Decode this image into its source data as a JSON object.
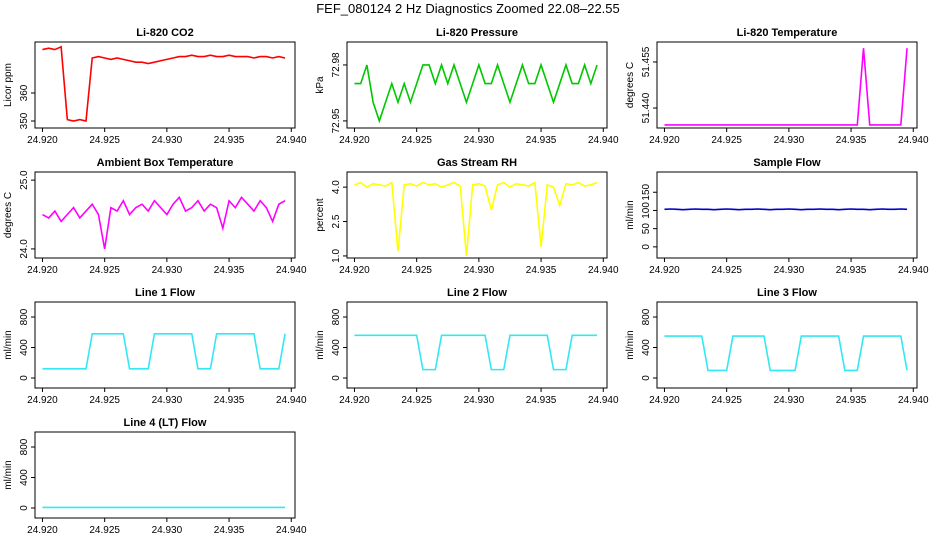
{
  "title": "FEF_080124  2 Hz Diagnostics Zoomed 22.08–22.55",
  "chart_data": [
    {
      "type": "line",
      "title": "Li-820 CO2",
      "y_label": "Licor ppm",
      "x": [
        24.92,
        24.9205,
        24.921,
        24.9215,
        24.922,
        24.9225,
        24.923,
        24.9235,
        24.924,
        24.9245,
        24.925,
        24.9255,
        24.926,
        24.9265,
        24.927,
        24.9275,
        24.928,
        24.9285,
        24.929,
        24.9295,
        24.93,
        24.9305,
        24.931,
        24.9315,
        24.932,
        24.9325,
        24.933,
        24.9335,
        24.934,
        24.9345,
        24.935,
        24.9355,
        24.936,
        24.9365,
        24.937,
        24.9375,
        24.938,
        24.9385,
        24.939,
        24.9395
      ],
      "values": [
        375.5,
        376,
        375.5,
        376.5,
        350.5,
        350,
        350.5,
        350,
        372.5,
        373,
        372.5,
        372,
        372.5,
        372,
        371.5,
        371,
        371,
        370.5,
        371,
        371.5,
        372,
        372.5,
        373,
        373,
        373.5,
        373,
        373,
        373.5,
        373,
        373,
        373.5,
        373,
        373,
        373,
        372.5,
        373,
        373,
        372.5,
        373,
        372.5
      ],
      "color": "#ff0000",
      "xlim": [
        24.9194,
        24.9403
      ],
      "ylim": [
        347.5,
        378.2
      ],
      "xticks": [
        {
          "value": 24.92,
          "label": "24.920"
        },
        {
          "value": 24.925,
          "label": "24.925"
        },
        {
          "value": 24.93,
          "label": "24.930"
        },
        {
          "value": 24.935,
          "label": "24.935"
        },
        {
          "value": 24.94,
          "label": "24.940"
        }
      ],
      "yticks": [
        350,
        360
      ]
    },
    {
      "type": "line",
      "title": "Li-820 Pressure",
      "y_label": "kPa",
      "x": [
        24.92,
        24.9205,
        24.921,
        24.9215,
        24.922,
        24.9225,
        24.923,
        24.9235,
        24.924,
        24.9245,
        24.925,
        24.9255,
        24.926,
        24.9265,
        24.927,
        24.9275,
        24.928,
        24.9285,
        24.929,
        24.9295,
        24.93,
        24.9305,
        24.931,
        24.9315,
        24.932,
        24.9325,
        24.933,
        24.9335,
        24.934,
        24.9345,
        24.935,
        24.9355,
        24.936,
        24.9365,
        24.937,
        24.9375,
        24.938,
        24.9385,
        24.939,
        24.9395
      ],
      "values": [
        72.97,
        72.97,
        72.98,
        72.96,
        72.95,
        72.96,
        72.97,
        72.96,
        72.97,
        72.96,
        72.97,
        72.98,
        72.98,
        72.97,
        72.98,
        72.97,
        72.98,
        72.97,
        72.96,
        72.97,
        72.98,
        72.97,
        72.97,
        72.98,
        72.97,
        72.96,
        72.97,
        72.98,
        72.97,
        72.97,
        72.98,
        72.97,
        72.96,
        72.97,
        72.98,
        72.97,
        72.97,
        72.98,
        72.97,
        72.98
      ],
      "color": "#00c800",
      "xlim": [
        24.9194,
        24.9403
      ],
      "ylim": [
        72.9462,
        72.9923
      ],
      "xticks": [
        {
          "value": 24.92,
          "label": "24.920"
        },
        {
          "value": 24.925,
          "label": "24.925"
        },
        {
          "value": 24.93,
          "label": "24.930"
        },
        {
          "value": 24.935,
          "label": "24.935"
        },
        {
          "value": 24.94,
          "label": "24.940"
        }
      ],
      "yticks": [
        72.95,
        72.98
      ]
    },
    {
      "type": "line",
      "title": "Li-820 Temperature",
      "y_label": "degrees C",
      "x": [
        24.92,
        24.9205,
        24.921,
        24.9215,
        24.922,
        24.9225,
        24.923,
        24.9235,
        24.924,
        24.9245,
        24.925,
        24.9255,
        24.926,
        24.9265,
        24.927,
        24.9275,
        24.928,
        24.9285,
        24.929,
        24.9295,
        24.93,
        24.9305,
        24.931,
        24.9315,
        24.932,
        24.9325,
        24.933,
        24.9335,
        24.934,
        24.9345,
        24.935,
        24.9355,
        24.936,
        24.9365,
        24.937,
        24.9375,
        24.938,
        24.9385,
        24.939,
        24.9395
      ],
      "values": [
        51.4345,
        51.4345,
        51.4345,
        51.4345,
        51.4345,
        51.4345,
        51.4345,
        51.4345,
        51.4345,
        51.4345,
        51.4345,
        51.4345,
        51.4345,
        51.4345,
        51.4345,
        51.4345,
        51.4345,
        51.4345,
        51.4345,
        51.4345,
        51.4345,
        51.4345,
        51.4345,
        51.4345,
        51.4345,
        51.4345,
        51.4345,
        51.4345,
        51.4345,
        51.4345,
        51.4345,
        51.4345,
        51.4595,
        51.4345,
        51.4345,
        51.4345,
        51.4345,
        51.4345,
        51.4345,
        51.4595
      ],
      "color": "#ff00ff",
      "xlim": [
        24.9194,
        24.9403
      ],
      "ylim": [
        51.4335,
        51.4615
      ],
      "xticks": [
        {
          "value": 24.92,
          "label": "24.920"
        },
        {
          "value": 24.925,
          "label": "24.925"
        },
        {
          "value": 24.93,
          "label": "24.930"
        },
        {
          "value": 24.935,
          "label": "24.935"
        },
        {
          "value": 24.94,
          "label": "24.940"
        }
      ],
      "yticks": [
        {
          "value": 51.44,
          "label": "51.440"
        },
        {
          "value": 51.455,
          "label": "51.455"
        }
      ]
    },
    {
      "type": "line",
      "title": "Ambient Box Temperature",
      "y_label": "degrees C",
      "x": [
        24.92,
        24.9205,
        24.921,
        24.9215,
        24.922,
        24.9225,
        24.923,
        24.9235,
        24.924,
        24.9245,
        24.925,
        24.9255,
        24.926,
        24.9265,
        24.927,
        24.9275,
        24.928,
        24.9285,
        24.929,
        24.9295,
        24.93,
        24.9305,
        24.931,
        24.9315,
        24.932,
        24.9325,
        24.933,
        24.9335,
        24.934,
        24.9345,
        24.935,
        24.9355,
        24.936,
        24.9365,
        24.937,
        24.9375,
        24.938,
        24.9385,
        24.939,
        24.9395
      ],
      "values": [
        24.5,
        24.45,
        24.55,
        24.4,
        24.5,
        24.6,
        24.45,
        24.55,
        24.65,
        24.5,
        24.0,
        24.6,
        24.55,
        24.7,
        24.5,
        24.6,
        24.65,
        24.55,
        24.7,
        24.6,
        24.5,
        24.65,
        24.75,
        24.55,
        24.6,
        24.7,
        24.55,
        24.65,
        24.6,
        24.3,
        24.7,
        24.6,
        24.75,
        24.65,
        24.55,
        24.7,
        24.6,
        24.4,
        24.65,
        24.7
      ],
      "color": "#ff00ff",
      "xlim": [
        24.9194,
        24.9403
      ],
      "ylim": [
        23.868,
        25.118
      ],
      "xticks": [
        {
          "value": 24.92,
          "label": "24.920"
        },
        {
          "value": 24.925,
          "label": "24.925"
        },
        {
          "value": 24.93,
          "label": "24.930"
        },
        {
          "value": 24.935,
          "label": "24.935"
        },
        {
          "value": 24.94,
          "label": "24.940"
        }
      ],
      "yticks": [
        {
          "value": 24,
          "label": "24.0"
        },
        {
          "value": 25,
          "label": "25.0"
        }
      ]
    },
    {
      "type": "line",
      "title": "Gas Stream RH",
      "y_label": "percent",
      "x": [
        24.92,
        24.9205,
        24.921,
        24.9215,
        24.922,
        24.9225,
        24.923,
        24.9235,
        24.924,
        24.9245,
        24.925,
        24.9255,
        24.926,
        24.9265,
        24.927,
        24.9275,
        24.928,
        24.9285,
        24.929,
        24.9295,
        24.93,
        24.9305,
        24.931,
        24.9315,
        24.932,
        24.9325,
        24.933,
        24.9335,
        24.934,
        24.9345,
        24.935,
        24.9355,
        24.936,
        24.9365,
        24.937,
        24.9375,
        24.938,
        24.9385,
        24.939,
        24.9395
      ],
      "values": [
        4.1,
        4.2,
        4.0,
        4.15,
        4.1,
        4.05,
        4.2,
        1.2,
        4.1,
        4.15,
        4.05,
        4.2,
        4.1,
        4.15,
        4.0,
        4.1,
        4.2,
        4.05,
        1.0,
        4.1,
        4.15,
        4.05,
        3.0,
        4.1,
        4.2,
        4.0,
        4.15,
        4.1,
        4.05,
        4.2,
        1.4,
        4.1,
        4.0,
        3.2,
        4.15,
        4.1,
        4.2,
        4.05,
        4.1,
        4.2
      ],
      "color": "#ffff00",
      "xlim": [
        24.9194,
        24.9403
      ],
      "ylim": [
        0.91,
        4.66
      ],
      "xticks": [
        {
          "value": 24.92,
          "label": "24.920"
        },
        {
          "value": 24.925,
          "label": "24.925"
        },
        {
          "value": 24.93,
          "label": "24.930"
        },
        {
          "value": 24.935,
          "label": "24.935"
        },
        {
          "value": 24.94,
          "label": "24.940"
        }
      ],
      "yticks": [
        {
          "value": 1,
          "label": "1.0"
        },
        {
          "value": 2.5,
          "label": "2.5"
        },
        {
          "value": 4,
          "label": "4.0"
        }
      ]
    },
    {
      "type": "line",
      "title": "Sample Flow",
      "y_label": "ml/min",
      "x": [
        24.92,
        24.9205,
        24.921,
        24.9215,
        24.922,
        24.9225,
        24.923,
        24.9235,
        24.924,
        24.9245,
        24.925,
        24.9255,
        24.926,
        24.9265,
        24.927,
        24.9275,
        24.928,
        24.9285,
        24.929,
        24.9295,
        24.93,
        24.9305,
        24.931,
        24.9315,
        24.932,
        24.9325,
        24.933,
        24.9335,
        24.934,
        24.9345,
        24.935,
        24.9355,
        24.936,
        24.9365,
        24.937,
        24.9375,
        24.938,
        24.9385,
        24.939,
        24.9395
      ],
      "values": [
        103,
        104,
        103,
        102,
        103,
        104,
        103,
        103,
        102,
        103,
        104,
        103,
        102,
        103,
        103,
        104,
        103,
        102,
        103,
        103,
        104,
        103,
        102,
        103,
        103,
        104,
        103,
        103,
        102,
        103,
        104,
        103,
        103,
        102,
        103,
        104,
        103,
        103,
        104,
        103
      ],
      "color": "#0000cc",
      "xlim": [
        24.9194,
        24.9403
      ],
      "ylim": [
        -30.6,
        205.6
      ],
      "xticks": [
        {
          "value": 24.92,
          "label": "24.920"
        },
        {
          "value": 24.925,
          "label": "24.925"
        },
        {
          "value": 24.93,
          "label": "24.930"
        },
        {
          "value": 24.935,
          "label": "24.935"
        },
        {
          "value": 24.94,
          "label": "24.940"
        }
      ],
      "yticks": [
        0,
        50,
        100,
        150
      ]
    },
    {
      "type": "line",
      "title": "Line 1 Flow",
      "y_label": "ml/min",
      "x": [
        24.92,
        24.9205,
        24.921,
        24.9215,
        24.922,
        24.9225,
        24.923,
        24.9235,
        24.924,
        24.9245,
        24.925,
        24.9255,
        24.926,
        24.9265,
        24.927,
        24.9275,
        24.928,
        24.9285,
        24.929,
        24.9295,
        24.93,
        24.9305,
        24.931,
        24.9315,
        24.932,
        24.9325,
        24.933,
        24.9335,
        24.934,
        24.9345,
        24.935,
        24.9355,
        24.936,
        24.9365,
        24.937,
        24.9375,
        24.938,
        24.9385,
        24.939,
        24.9395
      ],
      "values": [
        120,
        120,
        120,
        120,
        120,
        120,
        120,
        120,
        580,
        580,
        580,
        580,
        580,
        580,
        120,
        120,
        120,
        120,
        580,
        580,
        580,
        580,
        580,
        580,
        580,
        120,
        120,
        120,
        580,
        580,
        580,
        580,
        580,
        580,
        580,
        120,
        120,
        120,
        120,
        580
      ],
      "color": "#33e8f2",
      "xlim": [
        24.9194,
        24.9403
      ],
      "ylim": [
        -131,
        997
      ],
      "xticks": [
        {
          "value": 24.92,
          "label": "24.920"
        },
        {
          "value": 24.925,
          "label": "24.925"
        },
        {
          "value": 24.93,
          "label": "24.930"
        },
        {
          "value": 24.935,
          "label": "24.935"
        },
        {
          "value": 24.94,
          "label": "24.940"
        }
      ],
      "yticks": [
        0,
        400,
        800
      ]
    },
    {
      "type": "line",
      "title": "Line 2 Flow",
      "y_label": "ml/min",
      "x": [
        24.92,
        24.9205,
        24.921,
        24.9215,
        24.922,
        24.9225,
        24.923,
        24.9235,
        24.924,
        24.9245,
        24.925,
        24.9255,
        24.926,
        24.9265,
        24.927,
        24.9275,
        24.928,
        24.9285,
        24.929,
        24.9295,
        24.93,
        24.9305,
        24.931,
        24.9315,
        24.932,
        24.9325,
        24.933,
        24.9335,
        24.934,
        24.9345,
        24.935,
        24.9355,
        24.936,
        24.9365,
        24.937,
        24.9375,
        24.938,
        24.9385,
        24.939,
        24.9395
      ],
      "values": [
        560,
        560,
        560,
        560,
        560,
        560,
        560,
        560,
        560,
        560,
        560,
        110,
        110,
        110,
        560,
        560,
        560,
        560,
        560,
        560,
        560,
        560,
        110,
        110,
        110,
        560,
        560,
        560,
        560,
        560,
        560,
        560,
        110,
        110,
        110,
        560,
        560,
        560,
        560,
        560
      ],
      "color": "#33e8f2",
      "xlim": [
        24.9194,
        24.9403
      ],
      "ylim": [
        -131,
        997
      ],
      "xticks": [
        {
          "value": 24.92,
          "label": "24.920"
        },
        {
          "value": 24.925,
          "label": "24.925"
        },
        {
          "value": 24.93,
          "label": "24.930"
        },
        {
          "value": 24.935,
          "label": "24.935"
        },
        {
          "value": 24.94,
          "label": "24.940"
        }
      ],
      "yticks": [
        0,
        400,
        800
      ]
    },
    {
      "type": "line",
      "title": "Line 3 Flow",
      "y_label": "ml/min",
      "x": [
        24.92,
        24.9205,
        24.921,
        24.9215,
        24.922,
        24.9225,
        24.923,
        24.9235,
        24.924,
        24.9245,
        24.925,
        24.9255,
        24.926,
        24.9265,
        24.927,
        24.9275,
        24.928,
        24.9285,
        24.929,
        24.9295,
        24.93,
        24.9305,
        24.931,
        24.9315,
        24.932,
        24.9325,
        24.933,
        24.9335,
        24.934,
        24.9345,
        24.935,
        24.9355,
        24.936,
        24.9365,
        24.937,
        24.9375,
        24.938,
        24.9385,
        24.939,
        24.9395
      ],
      "values": [
        550,
        550,
        550,
        550,
        550,
        550,
        550,
        100,
        100,
        100,
        100,
        550,
        550,
        550,
        550,
        550,
        550,
        100,
        100,
        100,
        100,
        100,
        550,
        550,
        550,
        550,
        550,
        550,
        550,
        100,
        100,
        100,
        550,
        550,
        550,
        550,
        550,
        550,
        550,
        100
      ],
      "color": "#33e8f2",
      "xlim": [
        24.9194,
        24.9403
      ],
      "ylim": [
        -131,
        997
      ],
      "xticks": [
        {
          "value": 24.92,
          "label": "24.920"
        },
        {
          "value": 24.925,
          "label": "24.925"
        },
        {
          "value": 24.93,
          "label": "24.930"
        },
        {
          "value": 24.935,
          "label": "24.935"
        },
        {
          "value": 24.94,
          "label": "24.940"
        }
      ],
      "yticks": [
        0,
        400,
        800
      ]
    },
    {
      "type": "line",
      "title": "Line 4 (LT) Flow",
      "y_label": "ml/min",
      "x": [
        24.92,
        24.9205,
        24.921,
        24.9215,
        24.922,
        24.9225,
        24.923,
        24.9235,
        24.924,
        24.9245,
        24.925,
        24.9255,
        24.926,
        24.9265,
        24.927,
        24.9275,
        24.928,
        24.9285,
        24.929,
        24.9295,
        24.93,
        24.9305,
        24.931,
        24.9315,
        24.932,
        24.9325,
        24.933,
        24.9335,
        24.934,
        24.9345,
        24.935,
        24.9355,
        24.936,
        24.9365,
        24.937,
        24.9375,
        24.938,
        24.9385,
        24.939,
        24.9395
      ],
      "values": [
        8,
        8,
        8,
        8,
        8,
        8,
        8,
        8,
        8,
        8,
        8,
        8,
        8,
        8,
        8,
        8,
        8,
        8,
        8,
        8,
        8,
        8,
        8,
        8,
        8,
        8,
        8,
        8,
        8,
        8,
        8,
        8,
        8,
        8,
        8,
        8,
        8,
        8,
        8,
        8
      ],
      "color": "#33e8f2",
      "xlim": [
        24.9194,
        24.9403
      ],
      "ylim": [
        -131,
        997
      ],
      "xticks": [
        {
          "value": 24.92,
          "label": "24.920"
        },
        {
          "value": 24.925,
          "label": "24.925"
        },
        {
          "value": 24.93,
          "label": "24.930"
        },
        {
          "value": 24.935,
          "label": "24.935"
        },
        {
          "value": 24.94,
          "label": "24.940"
        }
      ],
      "yticks": [
        0,
        400,
        800
      ]
    }
  ]
}
